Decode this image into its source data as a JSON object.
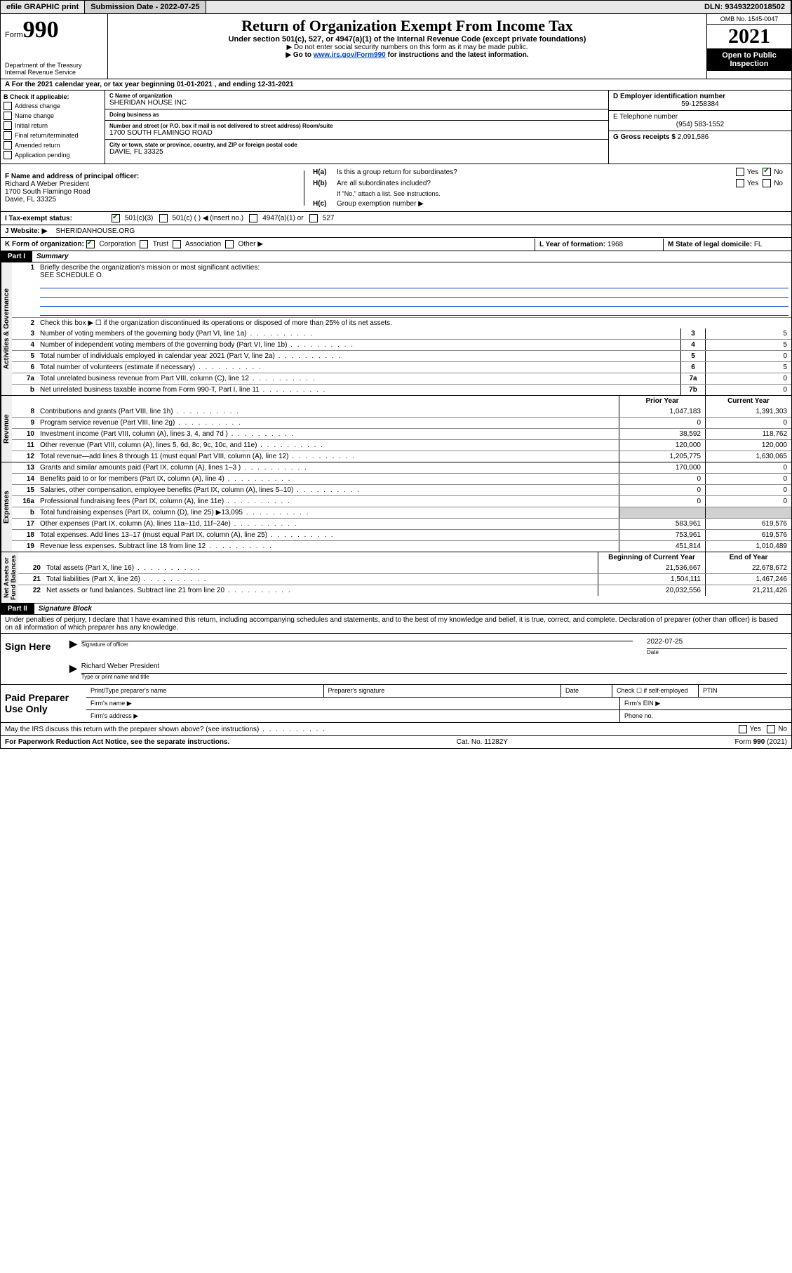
{
  "topbar": {
    "efile": "efile GRAPHIC print",
    "submission_label": "Submission Date - 2022-07-25",
    "dln_label": "DLN: 93493220018502"
  },
  "header": {
    "form_label": "Form",
    "form_num": "990",
    "title": "Return of Organization Exempt From Income Tax",
    "subtitle": "Under section 501(c), 527, or 4947(a)(1) of the Internal Revenue Code (except private foundations)",
    "note1": "▶ Do not enter social security numbers on this form as it may be made public.",
    "note2_prefix": "▶ Go to ",
    "note2_link": "www.irs.gov/Form990",
    "note2_suffix": " for instructions and the latest information.",
    "dept": "Department of the Treasury\nInternal Revenue Service",
    "omb": "OMB No. 1545-0047",
    "year": "2021",
    "open_public": "Open to Public\nInspection"
  },
  "rowA": {
    "text": "A For the 2021 calendar year, or tax year beginning 01-01-2021   , and ending 12-31-2021"
  },
  "colB": {
    "label": "B Check if applicable:",
    "address_change": "Address change",
    "name_change": "Name change",
    "initial": "Initial return",
    "final": "Final return/terminated",
    "amended": "Amended return",
    "app_pending": "Application pending"
  },
  "colC": {
    "name_label": "C Name of organization",
    "name": "SHERIDAN HOUSE INC",
    "dba_label": "Doing business as",
    "dba": "",
    "addr_label": "Number and street (or P.O. box if mail is not delivered to street address)          Room/suite",
    "addr": "1700 SOUTH FLAMINGO ROAD",
    "city_label": "City or town, state or province, country, and ZIP or foreign postal code",
    "city": "DAVIE, FL  33325"
  },
  "colD": {
    "ein_label": "D Employer identification number",
    "ein": "59-1258384",
    "phone_label": "E Telephone number",
    "phone": "(954) 583-1552",
    "gross_label": "G Gross receipts $",
    "gross": "2,091,586"
  },
  "rowF": {
    "label": "F  Name and address of principal officer:",
    "name": "Richard A Weber President",
    "addr1": "1700 South Flamingo Road",
    "addr2": "Davie, FL  33325"
  },
  "rowH": {
    "ha_label": "H(a)",
    "ha_text": "Is this a group return for subordinates?",
    "hb_label": "H(b)",
    "hb_text": "Are all subordinates included?",
    "hb_note": "If \"No,\" attach a list. See instructions.",
    "hc_label": "H(c)",
    "hc_text": "Group exemption number ▶",
    "yes": "Yes",
    "no": "No"
  },
  "rowI": {
    "label": "I     Tax-exempt status:",
    "c501c3": "501(c)(3)",
    "c501c": "501(c) (   ) ◀ (insert no.)",
    "c4947": "4947(a)(1) or",
    "c527": "527"
  },
  "rowJ": {
    "label": "J     Website: ▶",
    "value": "SHERIDANHOUSE.ORG"
  },
  "rowK": {
    "label": "K Form of organization:",
    "corp": "Corporation",
    "trust": "Trust",
    "assoc": "Association",
    "other": "Other ▶"
  },
  "rowL": {
    "label": "L Year of formation: ",
    "value": "1968"
  },
  "rowM": {
    "label": "M State of legal domicile: ",
    "value": "FL"
  },
  "part1": {
    "header": "Part I",
    "title": "Summary",
    "vtabs": {
      "gov": "Activities & Governance",
      "rev": "Revenue",
      "exp": "Expenses",
      "net": "Net Assets or\nFund Balances"
    },
    "line1_label": "Briefly describe the organization's mission or most significant activities:",
    "line1_value": "SEE SCHEDULE O.",
    "line2": "Check this box ▶ ☐  if the organization discontinued its operations or disposed of more than 25% of its net assets.",
    "lines_gov": [
      {
        "n": "3",
        "t": "Number of voting members of the governing body (Part VI, line 1a)",
        "k": "3",
        "v": "5"
      },
      {
        "n": "4",
        "t": "Number of independent voting members of the governing body (Part VI, line 1b)",
        "k": "4",
        "v": "5"
      },
      {
        "n": "5",
        "t": "Total number of individuals employed in calendar year 2021 (Part V, line 2a)",
        "k": "5",
        "v": "0"
      },
      {
        "n": "6",
        "t": "Total number of volunteers (estimate if necessary)",
        "k": "6",
        "v": "5"
      },
      {
        "n": "7a",
        "t": "Total unrelated business revenue from Part VIII, column (C), line 12",
        "k": "7a",
        "v": "0"
      },
      {
        "n": "b",
        "t": "Net unrelated business taxable income from Form 990-T, Part I, line 11",
        "k": "7b",
        "v": "0"
      }
    ],
    "col_prior": "Prior Year",
    "col_current": "Current Year",
    "lines_rev": [
      {
        "n": "8",
        "t": "Contributions and grants (Part VIII, line 1h)",
        "p": "1,047,183",
        "c": "1,391,303"
      },
      {
        "n": "9",
        "t": "Program service revenue (Part VIII, line 2g)",
        "p": "0",
        "c": "0"
      },
      {
        "n": "10",
        "t": "Investment income (Part VIII, column (A), lines 3, 4, and 7d )",
        "p": "38,592",
        "c": "118,762"
      },
      {
        "n": "11",
        "t": "Other revenue (Part VIII, column (A), lines 5, 6d, 8c, 9c, 10c, and 11e)",
        "p": "120,000",
        "c": "120,000"
      },
      {
        "n": "12",
        "t": "Total revenue—add lines 8 through 11 (must equal Part VIII, column (A), line 12)",
        "p": "1,205,775",
        "c": "1,630,065"
      }
    ],
    "lines_exp": [
      {
        "n": "13",
        "t": "Grants and similar amounts paid (Part IX, column (A), lines 1–3 )",
        "p": "170,000",
        "c": "0"
      },
      {
        "n": "14",
        "t": "Benefits paid to or for members (Part IX, column (A), line 4)",
        "p": "0",
        "c": "0"
      },
      {
        "n": "15",
        "t": "Salaries, other compensation, employee benefits (Part IX, column (A), lines 5–10)",
        "p": "0",
        "c": "0"
      },
      {
        "n": "16a",
        "t": "Professional fundraising fees (Part IX, column (A), line 11e)",
        "p": "0",
        "c": "0"
      },
      {
        "n": "b",
        "t": "Total fundraising expenses (Part IX, column (D), line 25) ▶13,095",
        "p": "",
        "c": "",
        "gray": true
      },
      {
        "n": "17",
        "t": "Other expenses (Part IX, column (A), lines 11a–11d, 11f–24e)",
        "p": "583,961",
        "c": "619,576"
      },
      {
        "n": "18",
        "t": "Total expenses. Add lines 13–17 (must equal Part IX, column (A), line 25)",
        "p": "753,961",
        "c": "619,576"
      },
      {
        "n": "19",
        "t": "Revenue less expenses. Subtract line 18 from line 12",
        "p": "451,814",
        "c": "1,010,489"
      }
    ],
    "col_begin": "Beginning of Current Year",
    "col_end": "End of Year",
    "lines_net": [
      {
        "n": "20",
        "t": "Total assets (Part X, line 16)",
        "p": "21,536,667",
        "c": "22,678,672"
      },
      {
        "n": "21",
        "t": "Total liabilities (Part X, line 26)",
        "p": "1,504,111",
        "c": "1,467,246"
      },
      {
        "n": "22",
        "t": "Net assets or fund balances. Subtract line 21 from line 20",
        "p": "20,032,556",
        "c": "21,211,426"
      }
    ]
  },
  "part2": {
    "header": "Part II",
    "title": "Signature Block",
    "declaration": "Under penalties of perjury, I declare that I have examined this return, including accompanying schedules and statements, and to the best of my knowledge and belief, it is true, correct, and complete. Declaration of preparer (other than officer) is based on all information of which preparer has any knowledge."
  },
  "sign": {
    "label": "Sign Here",
    "sig_officer": "Signature of officer",
    "date_label": "Date",
    "date": "2022-07-25",
    "name": "Richard Weber  President",
    "name_label": "Type or print name and title"
  },
  "preparer": {
    "label": "Paid Preparer Use Only",
    "print_name": "Print/Type preparer's name",
    "sig": "Preparer's signature",
    "date": "Date",
    "check_self": "Check ☐ if self-employed",
    "ptin": "PTIN",
    "firm_name": "Firm's name   ▶",
    "firm_ein": "Firm's EIN ▶",
    "firm_addr": "Firm's address ▶",
    "phone": "Phone no."
  },
  "footer": {
    "discuss": "May the IRS discuss this return with the preparer shown above? (see instructions)",
    "yes": "Yes",
    "no": "No",
    "paperwork": "For Paperwork Reduction Act Notice, see the separate instructions.",
    "cat": "Cat. No. 11282Y",
    "form": "Form 990 (2021)"
  }
}
